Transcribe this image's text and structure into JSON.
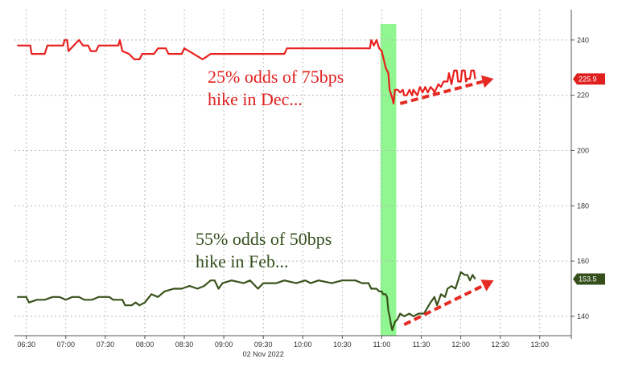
{
  "chart_data": {
    "type": "line",
    "date_label": "02 Nov 2022",
    "x_ticks": [
      "06:30",
      "07:00",
      "07:30",
      "08:00",
      "08:30",
      "09:00",
      "09:30",
      "10:00",
      "10:30",
      "11:00",
      "11:30",
      "12:00",
      "12:30",
      "13:00"
    ],
    "y_ticks": [
      140,
      160,
      180,
      200,
      220,
      240
    ],
    "ylim": [
      133,
      251
    ],
    "xlim": [
      "06:21",
      "13:24"
    ],
    "grid": true,
    "highlight": {
      "start": "10:59",
      "end": "11:11",
      "color": "#7CF57C"
    },
    "series": [
      {
        "color": "#E8201E",
        "last_value_label": "225.9",
        "label_color": "#E0201E",
        "points": [
          [
            "06:23",
            238
          ],
          [
            "06:33",
            238
          ],
          [
            "06:34",
            235
          ],
          [
            "06:44",
            235
          ],
          [
            "06:46",
            238
          ],
          [
            "06:58",
            238
          ],
          [
            "06:59",
            240
          ],
          [
            "07:01",
            240
          ],
          [
            "07:02",
            236
          ],
          [
            "07:06",
            238
          ],
          [
            "07:10",
            240
          ],
          [
            "07:13",
            238
          ],
          [
            "07:17",
            238
          ],
          [
            "07:19",
            236
          ],
          [
            "07:23",
            236
          ],
          [
            "07:25",
            238
          ],
          [
            "07:40",
            238
          ],
          [
            "07:41",
            240
          ],
          [
            "07:43",
            236
          ],
          [
            "07:48",
            235
          ],
          [
            "07:52",
            233
          ],
          [
            "07:56",
            233
          ],
          [
            "07:58",
            235
          ],
          [
            "08:07",
            235
          ],
          [
            "08:10",
            237
          ],
          [
            "08:16",
            237
          ],
          [
            "08:18",
            235
          ],
          [
            "08:28",
            235
          ],
          [
            "08:30",
            237
          ],
          [
            "08:37",
            235
          ],
          [
            "08:44",
            233
          ],
          [
            "08:50",
            235
          ],
          [
            "09:46",
            235
          ],
          [
            "09:48",
            237
          ],
          [
            "10:51",
            237
          ],
          [
            "10:52",
            240
          ],
          [
            "10:54",
            238
          ],
          [
            "10:56",
            240
          ],
          [
            "10:58",
            237
          ],
          [
            "11:00",
            236
          ],
          [
            "11:03",
            230
          ],
          [
            "11:05",
            228
          ],
          [
            "11:06",
            222
          ],
          [
            "11:08",
            219
          ],
          [
            "11:09",
            217
          ],
          [
            "11:10",
            222
          ],
          [
            "11:12",
            222
          ],
          [
            "11:14",
            221
          ],
          [
            "11:16",
            222
          ],
          [
            "11:17",
            220
          ],
          [
            "11:19",
            220
          ],
          [
            "11:21",
            222
          ],
          [
            "11:23",
            220
          ],
          [
            "11:24",
            222
          ],
          [
            "11:27",
            220
          ],
          [
            "11:29",
            223
          ],
          [
            "11:31",
            221
          ],
          [
            "11:33",
            223
          ],
          [
            "11:35",
            221
          ],
          [
            "11:37",
            223
          ],
          [
            "11:39",
            222
          ],
          [
            "11:40",
            221
          ],
          [
            "11:43",
            224
          ],
          [
            "11:45",
            223
          ],
          [
            "11:47",
            225
          ],
          [
            "11:50",
            225
          ],
          [
            "11:51",
            228
          ],
          [
            "11:53",
            224
          ],
          [
            "11:55",
            229
          ],
          [
            "11:57",
            229
          ],
          [
            "11:58",
            225
          ],
          [
            "12:00",
            225
          ],
          [
            "12:01",
            229
          ],
          [
            "12:03",
            229
          ],
          [
            "12:04",
            225
          ],
          [
            "12:05",
            226
          ],
          [
            "12:07",
            226
          ],
          [
            "12:08",
            229
          ],
          [
            "12:10",
            229
          ],
          [
            "12:11",
            225.9
          ]
        ]
      },
      {
        "color": "#3A531C",
        "last_value_label": "153.5",
        "label_color": "#344F1C",
        "points": [
          [
            "06:23",
            147
          ],
          [
            "06:30",
            147
          ],
          [
            "06:32",
            145
          ],
          [
            "06:38",
            146
          ],
          [
            "06:44",
            146
          ],
          [
            "06:50",
            147
          ],
          [
            "06:55",
            147
          ],
          [
            "07:00",
            146
          ],
          [
            "07:05",
            147
          ],
          [
            "07:10",
            147
          ],
          [
            "07:14",
            146
          ],
          [
            "07:20",
            146
          ],
          [
            "07:25",
            147
          ],
          [
            "07:33",
            147
          ],
          [
            "07:36",
            146
          ],
          [
            "07:43",
            146
          ],
          [
            "07:45",
            144
          ],
          [
            "07:50",
            144
          ],
          [
            "07:53",
            145
          ],
          [
            "07:56",
            144
          ],
          [
            "08:00",
            145
          ],
          [
            "08:05",
            148
          ],
          [
            "08:10",
            147
          ],
          [
            "08:15",
            149
          ],
          [
            "08:22",
            150
          ],
          [
            "08:28",
            150
          ],
          [
            "08:34",
            151
          ],
          [
            "08:40",
            150
          ],
          [
            "08:45",
            151
          ],
          [
            "08:50",
            153
          ],
          [
            "08:53",
            153
          ],
          [
            "08:56",
            150
          ],
          [
            "08:59",
            152
          ],
          [
            "09:06",
            153
          ],
          [
            "09:15",
            152
          ],
          [
            "09:20",
            153
          ],
          [
            "09:26",
            150
          ],
          [
            "09:30",
            152
          ],
          [
            "09:40",
            152
          ],
          [
            "09:46",
            153
          ],
          [
            "09:55",
            152
          ],
          [
            "10:02",
            153
          ],
          [
            "10:06",
            152
          ],
          [
            "10:12",
            153
          ],
          [
            "10:22",
            152
          ],
          [
            "10:30",
            153
          ],
          [
            "10:40",
            153
          ],
          [
            "10:45",
            152
          ],
          [
            "10:50",
            152
          ],
          [
            "10:52",
            150
          ],
          [
            "10:56",
            150
          ],
          [
            "10:58",
            149
          ],
          [
            "11:00",
            149
          ],
          [
            "11:01",
            148
          ],
          [
            "11:03",
            148
          ],
          [
            "11:04",
            147
          ],
          [
            "11:05",
            142
          ],
          [
            "11:06",
            140
          ],
          [
            "11:07",
            137
          ],
          [
            "11:08",
            135
          ],
          [
            "11:10",
            138
          ],
          [
            "11:12",
            139
          ],
          [
            "11:14",
            141
          ],
          [
            "11:17",
            140
          ],
          [
            "11:21",
            141
          ],
          [
            "11:24",
            140
          ],
          [
            "11:28",
            141
          ],
          [
            "11:32",
            141
          ],
          [
            "11:37",
            145
          ],
          [
            "11:40",
            147
          ],
          [
            "11:42",
            144
          ],
          [
            "11:45",
            148
          ],
          [
            "11:48",
            147
          ],
          [
            "11:50",
            150
          ],
          [
            "11:53",
            151
          ],
          [
            "11:56",
            150
          ],
          [
            "11:58",
            153
          ],
          [
            "12:00",
            156
          ],
          [
            "12:03",
            155
          ],
          [
            "12:05",
            155
          ],
          [
            "12:07",
            153
          ],
          [
            "12:09",
            155
          ],
          [
            "12:11",
            153.5
          ]
        ]
      }
    ],
    "annotations": [
      {
        "lines": [
          "25% odds of 75bps",
          "hike in Dec..."
        ],
        "color": "#E0201E"
      },
      {
        "lines": [
          "55% odds of 50bps",
          "hike in Feb..."
        ],
        "color": "#344F1C"
      }
    ],
    "arrows": [
      {
        "from": [
          "11:14",
          217
        ],
        "to": [
          "12:25",
          226
        ],
        "color": "#E62A24"
      },
      {
        "from": [
          "11:17",
          137
        ],
        "to": [
          "12:25",
          153
        ],
        "color": "#E62A24"
      }
    ]
  }
}
